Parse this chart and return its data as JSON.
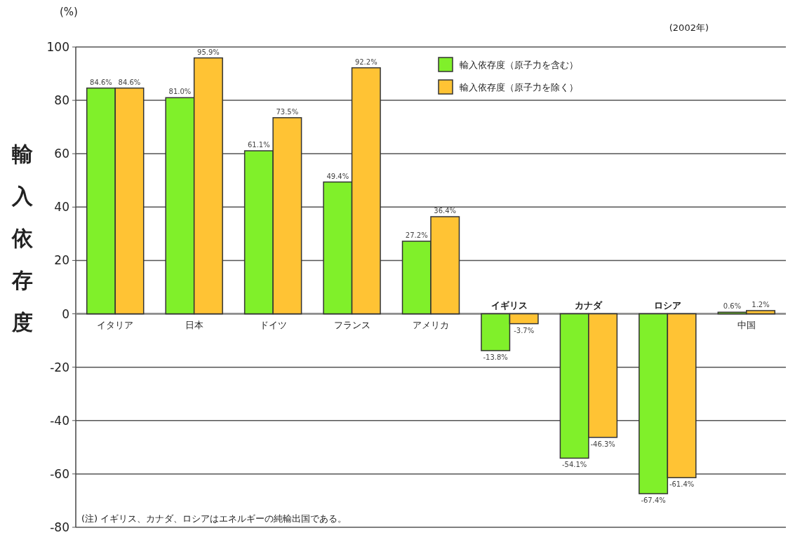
{
  "chart_data": {
    "type": "bar",
    "ylabel": "輸入依存度",
    "categories": [
      "イタリア",
      "日本",
      "ドイツ",
      "フランス",
      "アメリカ",
      "イギリス",
      "カナダ",
      "ロシア",
      "中国"
    ],
    "series": [
      {
        "name": "輸入依存度（原子力を含む）",
        "color": "#80f02a",
        "values": [
          84.6,
          81.0,
          61.1,
          49.4,
          27.2,
          -13.8,
          -54.1,
          -67.4,
          0.6
        ],
        "value_labels": [
          "84.6%",
          "81.0%",
          "61.1%",
          "49.4%",
          "27.2%",
          "-13.8%",
          "-54.1%",
          "-67.4%",
          "0.6%"
        ]
      },
      {
        "name": "輸入依存度（原子力を除く）",
        "color": "#ffc334",
        "values": [
          84.6,
          95.9,
          73.5,
          92.2,
          36.4,
          -3.7,
          -46.3,
          -61.4,
          1.2
        ],
        "value_labels": [
          "84.6%",
          "95.9%",
          "73.5%",
          "92.2%",
          "36.4%",
          "-3.7%",
          "-46.3%",
          "-61.4%",
          "1.2%"
        ]
      }
    ],
    "ylim": [
      -80,
      100
    ],
    "yticks": [
      -80,
      -60,
      -40,
      -20,
      0,
      20,
      40,
      60,
      80,
      100
    ],
    "grid": "y",
    "legend": "top right",
    "annotations": [
      "(%)",
      "(2002年)",
      "(注) イギリス、カナダ、ロシアはエネルギーの純輸出国である。"
    ]
  }
}
